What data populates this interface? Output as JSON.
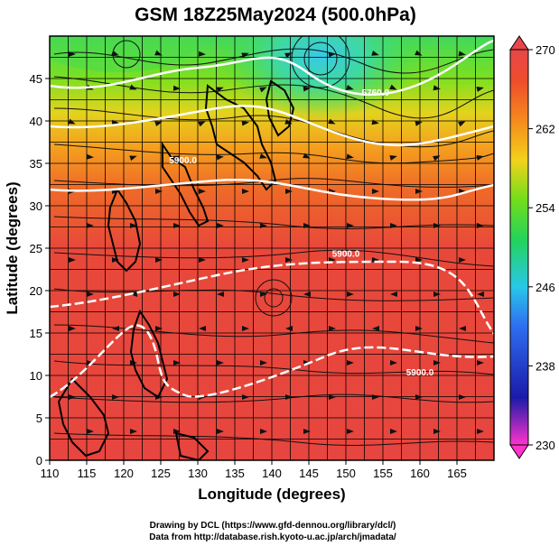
{
  "title": "GSM 18Z25May2024 (500.0hPa)",
  "credits": {
    "drawing": "Drawing by DCL (https://www.gfd-dennou.org/library/dcl/)",
    "data": "Data from http://database.rish.kyoto-u.ac.jp/arch/jmadata/"
  },
  "map": {
    "xlabel": "Longitude (degrees)",
    "ylabel": "Latitude (degrees)",
    "xlim": [
      110,
      170
    ],
    "ylim": [
      0,
      50
    ],
    "x_ticks": [
      "110",
      "115",
      "120",
      "125",
      "130",
      "135",
      "140",
      "145",
      "150",
      "155",
      "160",
      "165"
    ],
    "y_ticks": [
      "0",
      "5",
      "10",
      "15",
      "20",
      "25",
      "30",
      "35",
      "40",
      "45"
    ],
    "contour_labels": [
      {
        "text": "5900.0",
        "lon": 128,
        "lat": 35
      },
      {
        "text": "5900.0",
        "lon": 150,
        "lat": 24
      },
      {
        "text": "5900.0",
        "lon": 160,
        "lat": 10
      },
      {
        "text": "5760.0",
        "lon": 154,
        "lat": 43
      }
    ]
  },
  "colorbar": {
    "min": 230,
    "max": 270,
    "ticks": [
      "270",
      "262",
      "254",
      "246",
      "238",
      "230"
    ],
    "colors": [
      "#ff33cc",
      "#1a1aa8",
      "#2f6ef0",
      "#29c7e8",
      "#24d35a",
      "#72dd1c",
      "#f2d21b",
      "#f58a1e",
      "#ef4d2c",
      "#e8464a"
    ]
  }
}
